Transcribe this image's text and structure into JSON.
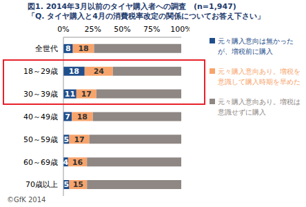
{
  "chart_data": {
    "type": "bar",
    "title": "図1. 2014年3月以前のタイヤ購入者への調査　(n=1,947)",
    "subtitle": "「Q. タイヤ購入と4月の消費税率改定の関係についてお答え下さい」",
    "annotation": "©GfK 2014",
    "orientation": "horizontal",
    "stacked": true,
    "legend": "right",
    "grid": false,
    "categories": [
      "全世代",
      "18～29歳",
      "30～39歳",
      "40～49歳",
      "50～59歳",
      "60～69歳",
      "70歳以上"
    ],
    "series": [
      {
        "name": "元々購入意向は無かったが、増税前に購入",
        "color": "#1f4e8c",
        "data_labels": true,
        "values": [
          8,
          18,
          11,
          7,
          5,
          4,
          5
        ]
      },
      {
        "name": "元々購入意向あり。増税を意識して購入時期を早めた",
        "color": "#f7a46c",
        "data_labels": true,
        "values": [
          18,
          24,
          17,
          18,
          17,
          16,
          15
        ]
      },
      {
        "name": "元々購入意向あり。増税は意識せずに購入",
        "color": "#8e8784",
        "data_labels": false,
        "values": [
          74,
          58,
          72,
          75,
          78,
          80,
          80
        ]
      }
    ],
    "xlim": [
      0,
      100
    ],
    "xticks": [
      {
        "value": 0,
        "label": "0%"
      },
      {
        "value": 25,
        "label": "25%"
      },
      {
        "value": 50,
        "label": "50%"
      },
      {
        "value": 75,
        "label": "75%"
      },
      {
        "value": 100,
        "label": "100%"
      }
    ]
  }
}
